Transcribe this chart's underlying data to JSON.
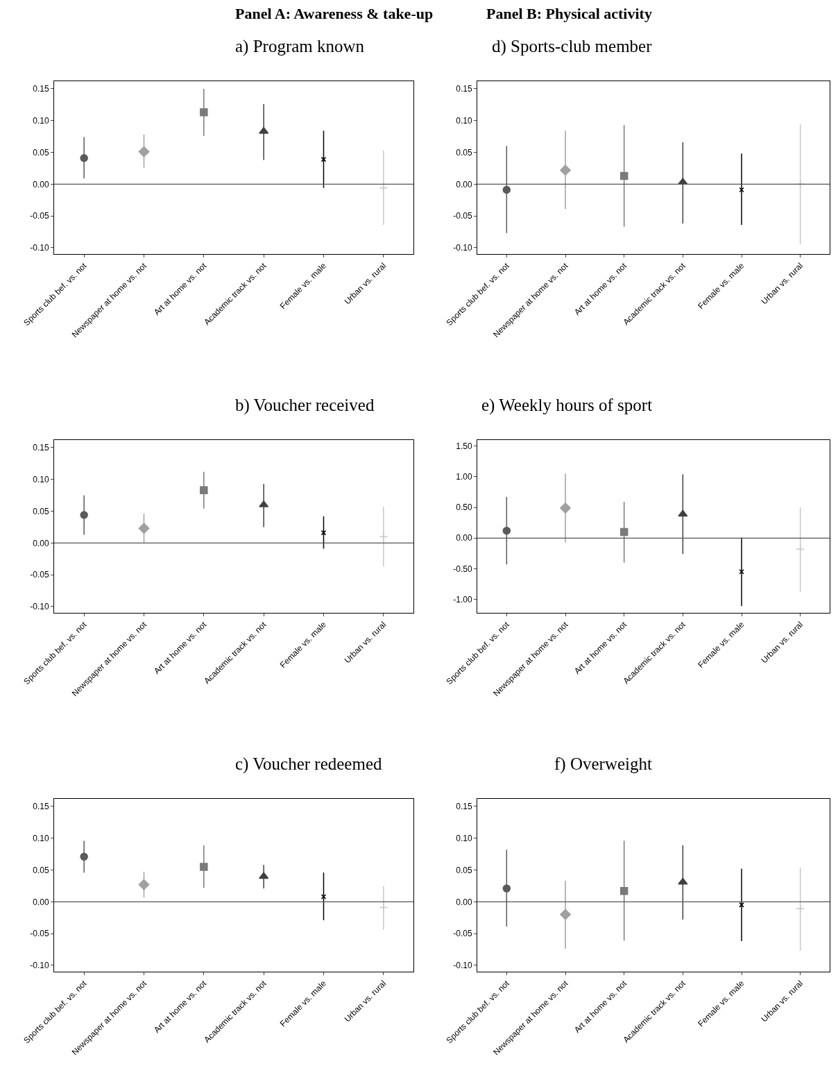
{
  "chart_data": [
    {
      "type": "scatter",
      "title": "a) Program known",
      "annotations": [
        "Panel A: Awareness & take-up"
      ],
      "categories": [
        "Sports club bef. vs. not",
        "Newspaper at home vs. not",
        "Art at home vs. not",
        "Academic track vs. not",
        "Female vs. male",
        "Urban vs. rural"
      ],
      "ylim": [
        -0.11,
        0.162
      ],
      "yticks": [
        {
          "value": -0.1,
          "label": "-0.10"
        },
        {
          "value": -0.05,
          "label": "-0.05"
        },
        {
          "value": 0,
          "label": "0.00"
        },
        {
          "value": 0.05,
          "label": "0.05"
        },
        {
          "value": 0.1,
          "label": "0.10"
        },
        {
          "value": 0.15,
          "label": "0.15"
        }
      ],
      "ref_lines": [
        {
          "axis": "y",
          "value": 0,
          "color": "#555555"
        }
      ],
      "series": [
        {
          "color": "#5a5a5a",
          "marker": "circle",
          "values": [
            0.041,
            null,
            null,
            null,
            null,
            null
          ],
          "errors": [
            [
              0.009,
              0.074
            ],
            null,
            null,
            null,
            null,
            null
          ]
        },
        {
          "color": "#a0a0a0",
          "marker": "diamond",
          "values": [
            null,
            0.051,
            null,
            null,
            null,
            null
          ],
          "errors": [
            null,
            [
              0.026,
              0.078
            ],
            null,
            null,
            null,
            null
          ]
        },
        {
          "color": "#7a7a7a",
          "marker": "square",
          "values": [
            null,
            null,
            0.113,
            null,
            null,
            null
          ],
          "errors": [
            null,
            null,
            [
              0.076,
              0.15
            ],
            null,
            null,
            null
          ]
        },
        {
          "color": "#404040",
          "marker": "triangle",
          "values": [
            null,
            null,
            null,
            0.083,
            null,
            null
          ],
          "errors": [
            null,
            null,
            null,
            [
              0.038,
              0.126
            ],
            null,
            null
          ]
        },
        {
          "color": "#000000",
          "marker": "cross",
          "values": [
            null,
            null,
            null,
            null,
            0.039,
            null
          ],
          "errors": [
            null,
            null,
            null,
            null,
            [
              -0.006,
              0.084
            ],
            null
          ]
        },
        {
          "color": "#c8c8c8",
          "marker": "plus",
          "values": [
            null,
            null,
            null,
            null,
            null,
            -0.006
          ],
          "errors": [
            null,
            null,
            null,
            null,
            null,
            [
              -0.064,
              0.053
            ]
          ]
        }
      ]
    },
    {
      "type": "scatter",
      "title": "d) Sports-club member",
      "annotations": [
        "Panel B: Physical activity"
      ],
      "categories": [
        "Sports club bef. vs. not",
        "Newspaper at home vs. not",
        "Art at home vs. not",
        "Academic track vs. not",
        "Female vs. male",
        "Urban vs. rural"
      ],
      "ylim": [
        -0.11,
        0.162
      ],
      "yticks": [
        {
          "value": -0.1,
          "label": "-0.10"
        },
        {
          "value": -0.05,
          "label": "-0.05"
        },
        {
          "value": 0,
          "label": "0.00"
        },
        {
          "value": 0.05,
          "label": "0.05"
        },
        {
          "value": 0.1,
          "label": "0.10"
        },
        {
          "value": 0.15,
          "label": "0.15"
        }
      ],
      "ref_lines": [
        {
          "axis": "y",
          "value": 0,
          "color": "#555555"
        }
      ],
      "series": [
        {
          "color": "#5a5a5a",
          "marker": "circle",
          "values": [
            -0.009,
            null,
            null,
            null,
            null,
            null
          ],
          "errors": [
            [
              -0.077,
              0.06
            ],
            null,
            null,
            null,
            null,
            null
          ]
        },
        {
          "color": "#a0a0a0",
          "marker": "diamond",
          "values": [
            null,
            0.022,
            null,
            null,
            null,
            null
          ],
          "errors": [
            null,
            [
              -0.039,
              0.084
            ],
            null,
            null,
            null,
            null
          ]
        },
        {
          "color": "#7a7a7a",
          "marker": "square",
          "values": [
            null,
            null,
            0.013,
            null,
            null,
            null
          ],
          "errors": [
            null,
            null,
            [
              -0.067,
              0.093
            ],
            null,
            null,
            null
          ]
        },
        {
          "color": "#404040",
          "marker": "triangle",
          "values": [
            null,
            null,
            null,
            0.003,
            null,
            null
          ],
          "errors": [
            null,
            null,
            null,
            [
              -0.062,
              0.066
            ],
            null,
            null
          ]
        },
        {
          "color": "#000000",
          "marker": "cross",
          "values": [
            null,
            null,
            null,
            null,
            -0.009,
            null
          ],
          "errors": [
            null,
            null,
            null,
            null,
            [
              -0.064,
              0.048
            ],
            null
          ]
        },
        {
          "color": "#c8c8c8",
          "marker": "plus",
          "values": [
            null,
            null,
            null,
            null,
            null,
            0.0
          ],
          "errors": [
            null,
            null,
            null,
            null,
            null,
            [
              -0.095,
              0.094
            ]
          ]
        }
      ]
    },
    {
      "type": "scatter",
      "title": "b) Voucher received",
      "categories": [
        "Sports club bef. vs. not",
        "Newspaper at home vs. not",
        "Art at home vs. not",
        "Academic track vs. not",
        "Female vs. male",
        "Urban vs. rural"
      ],
      "ylim": [
        -0.11,
        0.162
      ],
      "yticks": [
        {
          "value": -0.1,
          "label": "-0.10"
        },
        {
          "value": -0.05,
          "label": "-0.05"
        },
        {
          "value": 0,
          "label": "0.00"
        },
        {
          "value": 0.05,
          "label": "0.05"
        },
        {
          "value": 0.1,
          "label": "0.10"
        },
        {
          "value": 0.15,
          "label": "0.15"
        }
      ],
      "ref_lines": [
        {
          "axis": "y",
          "value": 0,
          "color": "#555555"
        }
      ],
      "series": [
        {
          "color": "#5a5a5a",
          "marker": "circle",
          "values": [
            0.044,
            null,
            null,
            null,
            null,
            null
          ],
          "errors": [
            [
              0.013,
              0.075
            ],
            null,
            null,
            null,
            null,
            null
          ]
        },
        {
          "color": "#a0a0a0",
          "marker": "diamond",
          "values": [
            null,
            0.023,
            null,
            null,
            null,
            null
          ],
          "errors": [
            null,
            [
              0.0,
              0.046
            ],
            null,
            null,
            null,
            null
          ]
        },
        {
          "color": "#7a7a7a",
          "marker": "square",
          "values": [
            null,
            null,
            0.083,
            null,
            null,
            null
          ],
          "errors": [
            null,
            null,
            [
              0.054,
              0.112
            ],
            null,
            null,
            null
          ]
        },
        {
          "color": "#404040",
          "marker": "triangle",
          "values": [
            null,
            null,
            null,
            0.06,
            null,
            null
          ],
          "errors": [
            null,
            null,
            null,
            [
              0.025,
              0.093
            ],
            null,
            null
          ]
        },
        {
          "color": "#000000",
          "marker": "cross",
          "values": [
            null,
            null,
            null,
            null,
            0.016,
            null
          ],
          "errors": [
            null,
            null,
            null,
            null,
            [
              -0.009,
              0.042
            ],
            null
          ]
        },
        {
          "color": "#c8c8c8",
          "marker": "plus",
          "values": [
            null,
            null,
            null,
            null,
            null,
            0.01
          ],
          "errors": [
            null,
            null,
            null,
            null,
            null,
            [
              -0.037,
              0.057
            ]
          ]
        }
      ]
    },
    {
      "type": "scatter",
      "title": "e) Weekly hours of sport",
      "categories": [
        "Sports club bef. vs. not",
        "Newspaper at home vs. not",
        "Art at home vs. not",
        "Academic track vs. not",
        "Female vs. male",
        "Urban vs. rural"
      ],
      "ylim": [
        -1.22,
        1.6
      ],
      "yticks": [
        {
          "value": -1,
          "label": "-1.00"
        },
        {
          "value": -0.5,
          "label": "-0.50"
        },
        {
          "value": 0,
          "label": "0.00"
        },
        {
          "value": 0.5,
          "label": "0.50"
        },
        {
          "value": 1,
          "label": "1.00"
        },
        {
          "value": 1.5,
          "label": "1.50"
        }
      ],
      "ref_lines": [
        {
          "axis": "y",
          "value": 0,
          "color": "#555555"
        }
      ],
      "series": [
        {
          "color": "#5a5a5a",
          "marker": "circle",
          "values": [
            0.12,
            null,
            null,
            null,
            null,
            null
          ],
          "errors": [
            [
              -0.43,
              0.67
            ],
            null,
            null,
            null,
            null,
            null
          ]
        },
        {
          "color": "#a0a0a0",
          "marker": "diamond",
          "values": [
            null,
            0.49,
            null,
            null,
            null,
            null
          ],
          "errors": [
            null,
            [
              -0.07,
              1.05
            ],
            null,
            null,
            null,
            null
          ]
        },
        {
          "color": "#7a7a7a",
          "marker": "square",
          "values": [
            null,
            null,
            0.1,
            null,
            null,
            null
          ],
          "errors": [
            null,
            null,
            [
              -0.4,
              0.59
            ],
            null,
            null,
            null
          ]
        },
        {
          "color": "#404040",
          "marker": "triangle",
          "values": [
            null,
            null,
            null,
            0.39,
            null,
            null
          ],
          "errors": [
            null,
            null,
            null,
            [
              -0.26,
              1.04
            ],
            null,
            null
          ]
        },
        {
          "color": "#000000",
          "marker": "cross",
          "values": [
            null,
            null,
            null,
            null,
            -0.55,
            null
          ],
          "errors": [
            null,
            null,
            null,
            null,
            [
              -1.11,
              0.01
            ],
            null
          ]
        },
        {
          "color": "#c8c8c8",
          "marker": "plus",
          "values": [
            null,
            null,
            null,
            null,
            null,
            -0.18
          ],
          "errors": [
            null,
            null,
            null,
            null,
            null,
            [
              -0.88,
              0.5
            ]
          ]
        }
      ]
    },
    {
      "type": "scatter",
      "title": "c) Voucher redeemed",
      "categories": [
        "Sports club bef. vs. not",
        "Newspaper at home vs. not",
        "Art at home vs. not",
        "Academic track vs. not",
        "Female vs. male",
        "Urban vs. rural"
      ],
      "ylim": [
        -0.11,
        0.162
      ],
      "yticks": [
        {
          "value": -0.1,
          "label": "-0.10"
        },
        {
          "value": -0.05,
          "label": "-0.05"
        },
        {
          "value": 0,
          "label": "0.00"
        },
        {
          "value": 0.05,
          "label": "0.05"
        },
        {
          "value": 0.1,
          "label": "0.10"
        },
        {
          "value": 0.15,
          "label": "0.15"
        }
      ],
      "ref_lines": [
        {
          "axis": "y",
          "value": 0,
          "color": "#555555"
        }
      ],
      "series": [
        {
          "color": "#5a5a5a",
          "marker": "circle",
          "values": [
            0.071,
            null,
            null,
            null,
            null,
            null
          ],
          "errors": [
            [
              0.046,
              0.096
            ],
            null,
            null,
            null,
            null,
            null
          ]
        },
        {
          "color": "#a0a0a0",
          "marker": "diamond",
          "values": [
            null,
            0.027,
            null,
            null,
            null,
            null
          ],
          "errors": [
            null,
            [
              0.007,
              0.047
            ],
            null,
            null,
            null,
            null
          ]
        },
        {
          "color": "#7a7a7a",
          "marker": "square",
          "values": [
            null,
            null,
            0.055,
            null,
            null,
            null
          ],
          "errors": [
            null,
            null,
            [
              0.022,
              0.089
            ],
            null,
            null,
            null
          ]
        },
        {
          "color": "#404040",
          "marker": "triangle",
          "values": [
            null,
            null,
            null,
            0.04,
            null,
            null
          ],
          "errors": [
            null,
            null,
            null,
            [
              0.021,
              0.058
            ],
            null,
            null
          ]
        },
        {
          "color": "#000000",
          "marker": "cross",
          "values": [
            null,
            null,
            null,
            null,
            0.008,
            null
          ],
          "errors": [
            null,
            null,
            null,
            null,
            [
              -0.029,
              0.046
            ],
            null
          ]
        },
        {
          "color": "#c8c8c8",
          "marker": "plus",
          "values": [
            null,
            null,
            null,
            null,
            null,
            -0.009
          ],
          "errors": [
            null,
            null,
            null,
            null,
            null,
            [
              -0.044,
              0.025
            ]
          ]
        }
      ]
    },
    {
      "type": "scatter",
      "title": "f) Overweight",
      "categories": [
        "Sports club bef. vs. not",
        "Newspaper at home vs. not",
        "Art at home vs. not",
        "Academic track vs. not",
        "Female vs. male",
        "Urban vs. rural"
      ],
      "ylim": [
        -0.11,
        0.162
      ],
      "yticks": [
        {
          "value": -0.1,
          "label": "-0.10"
        },
        {
          "value": -0.05,
          "label": "-0.05"
        },
        {
          "value": 0,
          "label": "0.00"
        },
        {
          "value": 0.05,
          "label": "0.05"
        },
        {
          "value": 0.1,
          "label": "0.10"
        },
        {
          "value": 0.15,
          "label": "0.15"
        }
      ],
      "ref_lines": [
        {
          "axis": "y",
          "value": 0,
          "color": "#555555"
        }
      ],
      "series": [
        {
          "color": "#5a5a5a",
          "marker": "circle",
          "values": [
            0.021,
            null,
            null,
            null,
            null,
            null
          ],
          "errors": [
            [
              -0.039,
              0.082
            ],
            null,
            null,
            null,
            null,
            null
          ]
        },
        {
          "color": "#a0a0a0",
          "marker": "diamond",
          "values": [
            null,
            -0.02,
            null,
            null,
            null,
            null
          ],
          "errors": [
            null,
            [
              -0.074,
              0.033
            ],
            null,
            null,
            null,
            null
          ]
        },
        {
          "color": "#7a7a7a",
          "marker": "square",
          "values": [
            null,
            null,
            0.017,
            null,
            null,
            null
          ],
          "errors": [
            null,
            null,
            [
              -0.061,
              0.096
            ],
            null,
            null,
            null
          ]
        },
        {
          "color": "#404040",
          "marker": "triangle",
          "values": [
            null,
            null,
            null,
            0.031,
            null,
            null
          ],
          "errors": [
            null,
            null,
            null,
            [
              -0.028,
              0.089
            ],
            null,
            null
          ]
        },
        {
          "color": "#000000",
          "marker": "cross",
          "values": [
            null,
            null,
            null,
            null,
            -0.005,
            null
          ],
          "errors": [
            null,
            null,
            null,
            null,
            [
              -0.062,
              0.052
            ],
            null
          ]
        },
        {
          "color": "#c8c8c8",
          "marker": "plus",
          "values": [
            null,
            null,
            null,
            null,
            null,
            -0.011
          ],
          "errors": [
            null,
            null,
            null,
            null,
            null,
            [
              -0.077,
              0.054
            ]
          ]
        }
      ]
    }
  ]
}
